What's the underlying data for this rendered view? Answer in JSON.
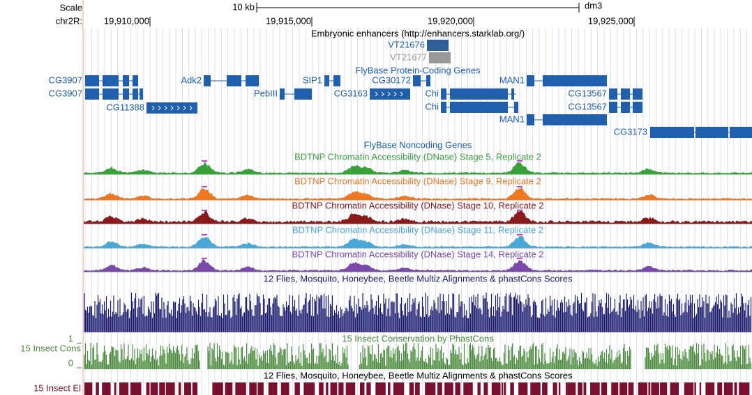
{
  "ruler": {
    "scale_label": "Scale",
    "chrom_label": "chr2R:",
    "span": "10 kb",
    "assembly": "dm3",
    "positions": [
      "19,910,000",
      "19,915,000",
      "19,920,000",
      "19,925,000"
    ]
  },
  "enhancers": {
    "title": "Embryonic enhancers (http://enhancers.starklab.org/)",
    "items": [
      "VT21676",
      "VT21677"
    ]
  },
  "coding_genes": {
    "title": "FlyBase Protein-Coding Genes",
    "items": [
      "CG3907",
      "CG3907",
      "CG11388",
      "Adk2",
      "PebIII",
      "SIP1",
      "CG3163",
      "CG30172",
      "Chi",
      "Chi",
      "MAN1",
      "MAN1",
      "CG13567",
      "CG13567",
      "CG3173"
    ]
  },
  "noncoding_genes": {
    "title": "FlyBase Noncoding Genes"
  },
  "dnase_tracks": [
    "BDTNP Chromatin Accessibility (DNase) Stage 5, Replicate 2",
    "BDTNP Chromatin Accessibility (DNase) Stage 9, Replicate 2",
    "BDTNP Chromatin Accessibility (DNase) Stage 10, Replicate 2",
    "BDTNP Chromatin Accessibility (DNase) Stage 11, Replicate 2",
    "BDTNP Chromatin Accessibility (DNase) Stage 14, Replicate 2"
  ],
  "multiz": {
    "title": "12 Flies, Mosquito, Honeybee, Beetle Multiz Alignments & phastCons Scores"
  },
  "conservation": {
    "title": "15 Insect Conservation by PhastCons",
    "label": "15 Insect Cons",
    "axis_top": "1",
    "axis_bottom": "0"
  },
  "elements": {
    "title": "12 Flies, Mosquito, Honeybee, Beetle Multiz Alignments & phastCons Scores",
    "label": "15 Insect El"
  }
}
